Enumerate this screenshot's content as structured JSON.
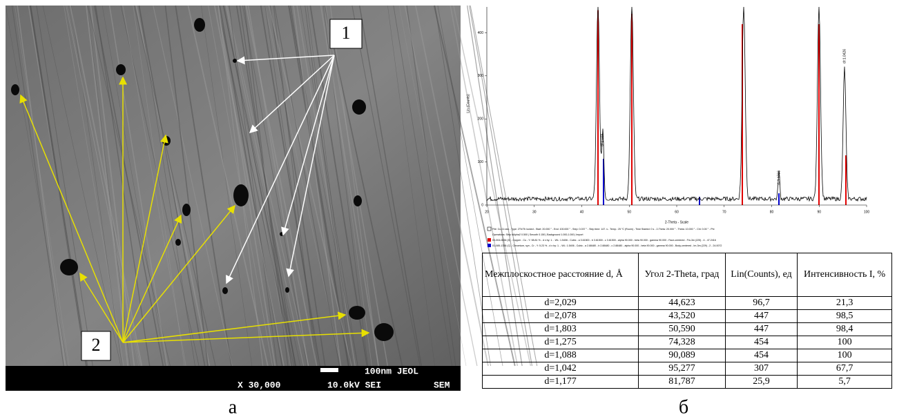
{
  "sem": {
    "label_1": "1",
    "label_2": "2",
    "scale": "100nm JEOL",
    "magnification": "X 30,000",
    "voltage": "10.0kV SEI",
    "mode": "SEM",
    "caption": "а"
  },
  "xrd": {
    "y_label": "Lin (Counts)",
    "x_label": "2-Theta - Scale",
    "xlim": [
      20,
      100
    ],
    "xticks": [
      20,
      30,
      40,
      50,
      60,
      70,
      80,
      90,
      100
    ],
    "ylim": [
      0,
      460
    ],
    "yticks": [
      0,
      100,
      200,
      300,
      400
    ],
    "peak_labels": [
      "d=2.029",
      "d=1.1766",
      "d=1.0426"
    ],
    "legend": [
      "File: Cu-Cr.raw - Type: 2Th/Th locked - Start: 20.000 ° - End: 100.000 ° - Step: 0.037 ° - Step time: 147. s - Temp.: 25 °C (Room) - Time Started: 0 s - 2-Theta: 20.000 ° - Theta: 10.000 ° - Chi: 0.00 ° - Phi",
      "Operations: Strip kAlpha2 0.500 | Smooth 0.150 | Background 1.000,1.000 | Import",
      "00-004-0836 (D) - Copper - Cu - Y: 98.81 % - d x by: 1. - WL: 1.5406 - Cubic - a 3.61500 - b 3.61500 - c 3.61500 - alpha 90.000 - beta 90.000 - gamma 90.000 - Face-centered - Fm-3m (225) - 4 - 47.2416",
      "01-085-1336 (C) - Chromium, syn - Cr - Y: 5.23 % - d x by: 1. - WL: 1.5406 - Cubic - a 2.88480 - b 2.88480 - c 2.88480 - alpha 90.000 - beta 90.000 - gamma 90.000 - Body-centered - Im-3m (229) - 2 - 24.0072"
    ],
    "caption": "б"
  },
  "table": {
    "header": [
      "Межплоскостное расстояние d, Å",
      "Угол 2-Theta, град",
      "Lin(Counts), ед",
      "Интенсивность I, %"
    ],
    "rows": [
      [
        "d=2,029",
        "44,623",
        "96,7",
        "21,3"
      ],
      [
        "d=2,078",
        "43,520",
        "447",
        "98,5"
      ],
      [
        "d=1,803",
        "50,590",
        "447",
        "98,4"
      ],
      [
        "d=1,275",
        "74,328",
        "454",
        "100"
      ],
      [
        "d=1,088",
        "90,089",
        "454",
        "100"
      ],
      [
        "d=1,042",
        "95,277",
        "307",
        "67,7"
      ],
      [
        "d=1,177",
        "81,787",
        "25,9",
        "5,7"
      ]
    ]
  }
}
